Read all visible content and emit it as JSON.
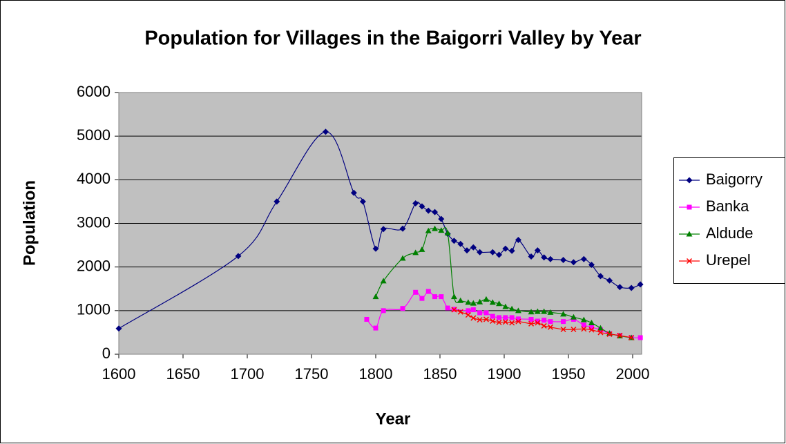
{
  "chart_data": {
    "type": "line",
    "smooth": true,
    "title": "Population for Villages in the Baigorri Valley by Year",
    "x_label": "Year",
    "y_label": "Population",
    "xlim": [
      1600,
      2007
    ],
    "xticks": [
      1600,
      1650,
      1700,
      1750,
      1800,
      1850,
      1900,
      1950,
      2000
    ],
    "ylim": [
      0,
      6000
    ],
    "yticks": [
      0,
      1000,
      2000,
      3000,
      4000,
      5000,
      6000
    ],
    "grid": true,
    "legend": "right",
    "plot_background": "#c0c0c0",
    "series": [
      {
        "name": "Baigorry",
        "color": "#000080",
        "marker": "diamond",
        "x": [
          1600,
          1693,
          1723,
          1761,
          1783,
          1790,
          1800,
          1806,
          1821,
          1831,
          1836,
          1841,
          1846,
          1851,
          1856,
          1861,
          1866,
          1871,
          1876,
          1881,
          1891,
          1896,
          1901,
          1906,
          1911,
          1921,
          1926,
          1931,
          1936,
          1946,
          1954,
          1962,
          1968,
          1975,
          1982,
          1990,
          1999,
          2006
        ],
        "values": [
          590,
          2250,
          3500,
          5100,
          3700,
          3500,
          2420,
          2870,
          2880,
          3460,
          3390,
          3290,
          3260,
          3100,
          2760,
          2600,
          2530,
          2380,
          2450,
          2340,
          2340,
          2280,
          2420,
          2370,
          2620,
          2240,
          2380,
          2220,
          2180,
          2160,
          2110,
          2180,
          2050,
          1790,
          1690,
          1540,
          1520,
          1600
        ]
      },
      {
        "name": "Banka",
        "color": "#ff00ff",
        "marker": "square",
        "x": [
          1793,
          1800,
          1806,
          1821,
          1831,
          1836,
          1841,
          1846,
          1851,
          1856,
          1861,
          1872,
          1876,
          1881,
          1886,
          1891,
          1896,
          1901,
          1906,
          1911,
          1921,
          1926,
          1931,
          1936,
          1946,
          1954,
          1962,
          1968,
          1975,
          1982,
          1990,
          1999,
          2006
        ],
        "values": [
          800,
          600,
          1000,
          1050,
          1420,
          1280,
          1440,
          1320,
          1320,
          1060,
          1030,
          1000,
          1020,
          950,
          950,
          870,
          840,
          840,
          840,
          810,
          800,
          760,
          780,
          750,
          750,
          800,
          670,
          620,
          560,
          470,
          430,
          380,
          380
        ]
      },
      {
        "name": "Aldude",
        "color": "#008000",
        "marker": "triangle",
        "x": [
          1800,
          1806,
          1821,
          1831,
          1836,
          1841,
          1846,
          1851,
          1856,
          1861,
          1866,
          1872,
          1876,
          1881,
          1886,
          1891,
          1896,
          1901,
          1906,
          1911,
          1921,
          1926,
          1931,
          1936,
          1946,
          1954,
          1962,
          1968,
          1975,
          1982,
          1990,
          1999
        ],
        "values": [
          1320,
          1680,
          2200,
          2330,
          2400,
          2830,
          2880,
          2840,
          2780,
          1320,
          1230,
          1190,
          1170,
          1200,
          1260,
          1190,
          1160,
          1090,
          1040,
          1000,
          970,
          980,
          980,
          960,
          920,
          850,
          790,
          720,
          600,
          480,
          420,
          380
        ]
      },
      {
        "name": "Urepel",
        "color": "#ff0000",
        "marker": "x",
        "x": [
          1861,
          1866,
          1872,
          1876,
          1881,
          1886,
          1891,
          1896,
          1901,
          1906,
          1911,
          1921,
          1926,
          1931,
          1936,
          1946,
          1954,
          1962,
          1968,
          1975,
          1982,
          1990,
          1999
        ],
        "values": [
          1020,
          970,
          900,
          830,
          790,
          800,
          760,
          730,
          740,
          720,
          750,
          700,
          720,
          650,
          620,
          570,
          570,
          580,
          560,
          500,
          460,
          430,
          380
        ]
      }
    ]
  }
}
